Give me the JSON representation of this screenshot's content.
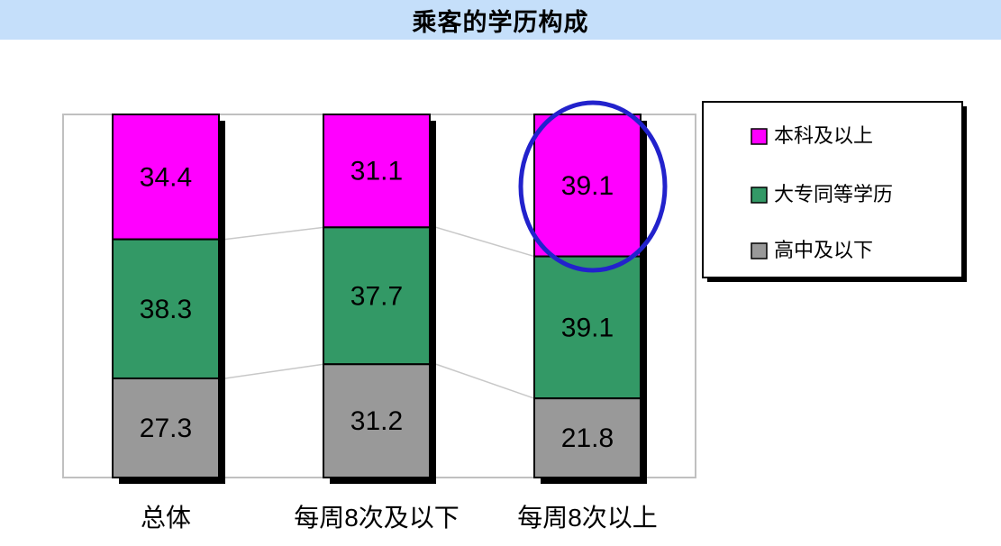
{
  "title": "乘客的学历构成",
  "colors": {
    "banner_bg": "#C5DFFA",
    "plot_border": "#C0C0C0",
    "connector": "#C8C8C8",
    "bar_border": "#000000",
    "shadow": "#000000",
    "annotation": "#2222CC",
    "legend_bg": "#FFFFFF",
    "legend_border": "#000000"
  },
  "chart_data": {
    "type": "bar",
    "subtype": "stacked-column-100",
    "title": "乘客的学历构成",
    "categories": [
      "总体",
      "每周8次及以下",
      "每周8次以上"
    ],
    "series": [
      {
        "name": "本科及以上",
        "color": "#FF00FF",
        "values": [
          34.4,
          31.1,
          39.1
        ]
      },
      {
        "name": "大专同等学历",
        "color": "#339966",
        "values": [
          38.3,
          37.7,
          39.1
        ]
      },
      {
        "name": "高中及以下",
        "color": "#999999",
        "values": [
          27.3,
          31.2,
          21.8
        ]
      }
    ],
    "stack_order": "top-to-bottom",
    "ylim": [
      0,
      100
    ],
    "grid": false,
    "legend_position": "right",
    "series_lines": true,
    "annotation": {
      "shape": "ellipse",
      "color": "#2222CC",
      "target_category": "每周8次以上",
      "target_series": "本科及以上",
      "target_value": 39.1
    }
  }
}
